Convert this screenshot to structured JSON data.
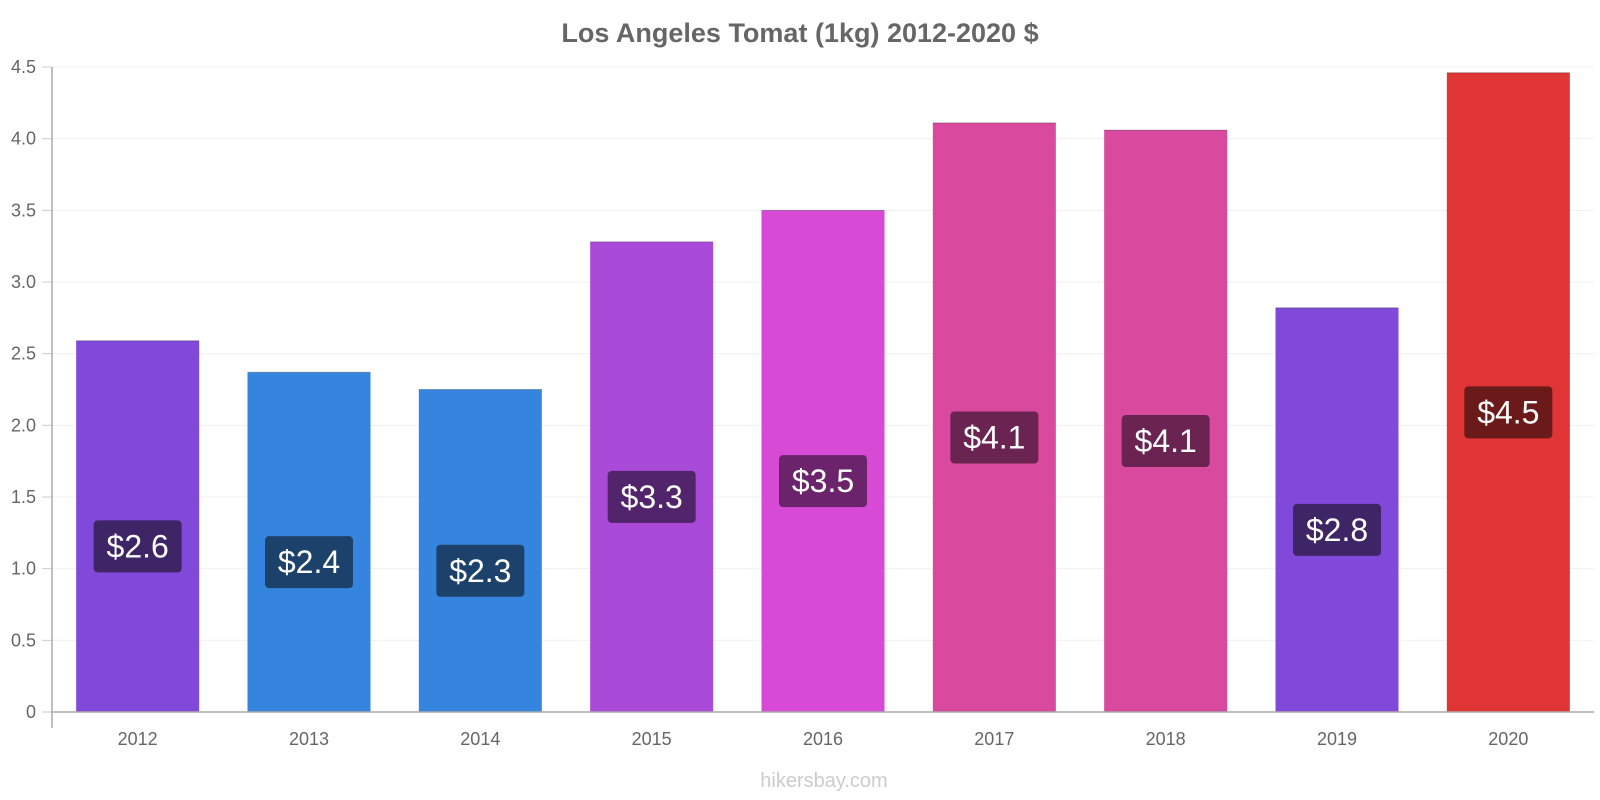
{
  "chart_data": {
    "type": "bar",
    "title": "Los Angeles Tomat (1kg) 2012-2020 $",
    "categories": [
      "2012",
      "2013",
      "2014",
      "2015",
      "2016",
      "2017",
      "2018",
      "2019",
      "2020"
    ],
    "values": [
      2.59,
      2.37,
      2.25,
      3.28,
      3.5,
      4.11,
      4.06,
      2.82,
      4.46
    ],
    "data_labels": [
      "$2.6",
      "$2.4",
      "$2.3",
      "$3.3",
      "$3.5",
      "$4.1",
      "$4.1",
      "$2.8",
      "$4.5"
    ],
    "bar_colors": [
      "#8049d9",
      "#3585de",
      "#3585de",
      "#a94ad9",
      "#d64ad5",
      "#d94a9f",
      "#d94a9f",
      "#8049d9",
      "#e03535"
    ],
    "label_bg_colors": [
      "#3e2566",
      "#1c416b",
      "#1c416b",
      "#52246b",
      "#6b246b",
      "#6b2452",
      "#6b2452",
      "#3e2566",
      "#6b1a1a"
    ],
    "yticks": [
      "0",
      "0.5",
      "1.0",
      "1.5",
      "2.0",
      "2.5",
      "3.0",
      "3.5",
      "4.0",
      "4.5"
    ],
    "ylim": [
      0,
      4.5
    ],
    "xlabel": "",
    "ylabel": "",
    "grid": true,
    "legend": "none"
  },
  "source_text": "hikersbay.com"
}
